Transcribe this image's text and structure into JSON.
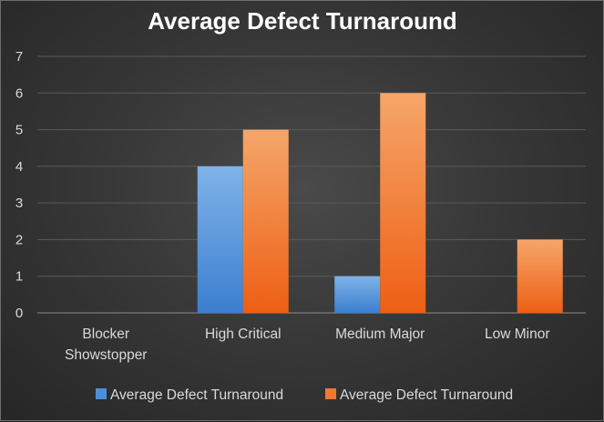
{
  "chart_data": {
    "type": "bar",
    "title": "Average Defect Turnaround",
    "categories": [
      [
        "Blocker",
        "Showstopper"
      ],
      [
        "High Critical"
      ],
      [
        "Medium Major"
      ],
      [
        "Low Minor"
      ]
    ],
    "series": [
      {
        "name": "Average Defect Turnaround",
        "color": "#4a90d9",
        "values": [
          0,
          4,
          1,
          0
        ]
      },
      {
        "name": "Average Defect Turnaround",
        "color": "#f07830",
        "values": [
          0,
          5,
          6,
          2
        ]
      }
    ],
    "ylim": [
      0,
      7
    ],
    "yticks": [
      "0",
      "1",
      "2",
      "3",
      "4",
      "5",
      "6",
      "7"
    ],
    "grid": true,
    "legend_position": "bottom"
  }
}
